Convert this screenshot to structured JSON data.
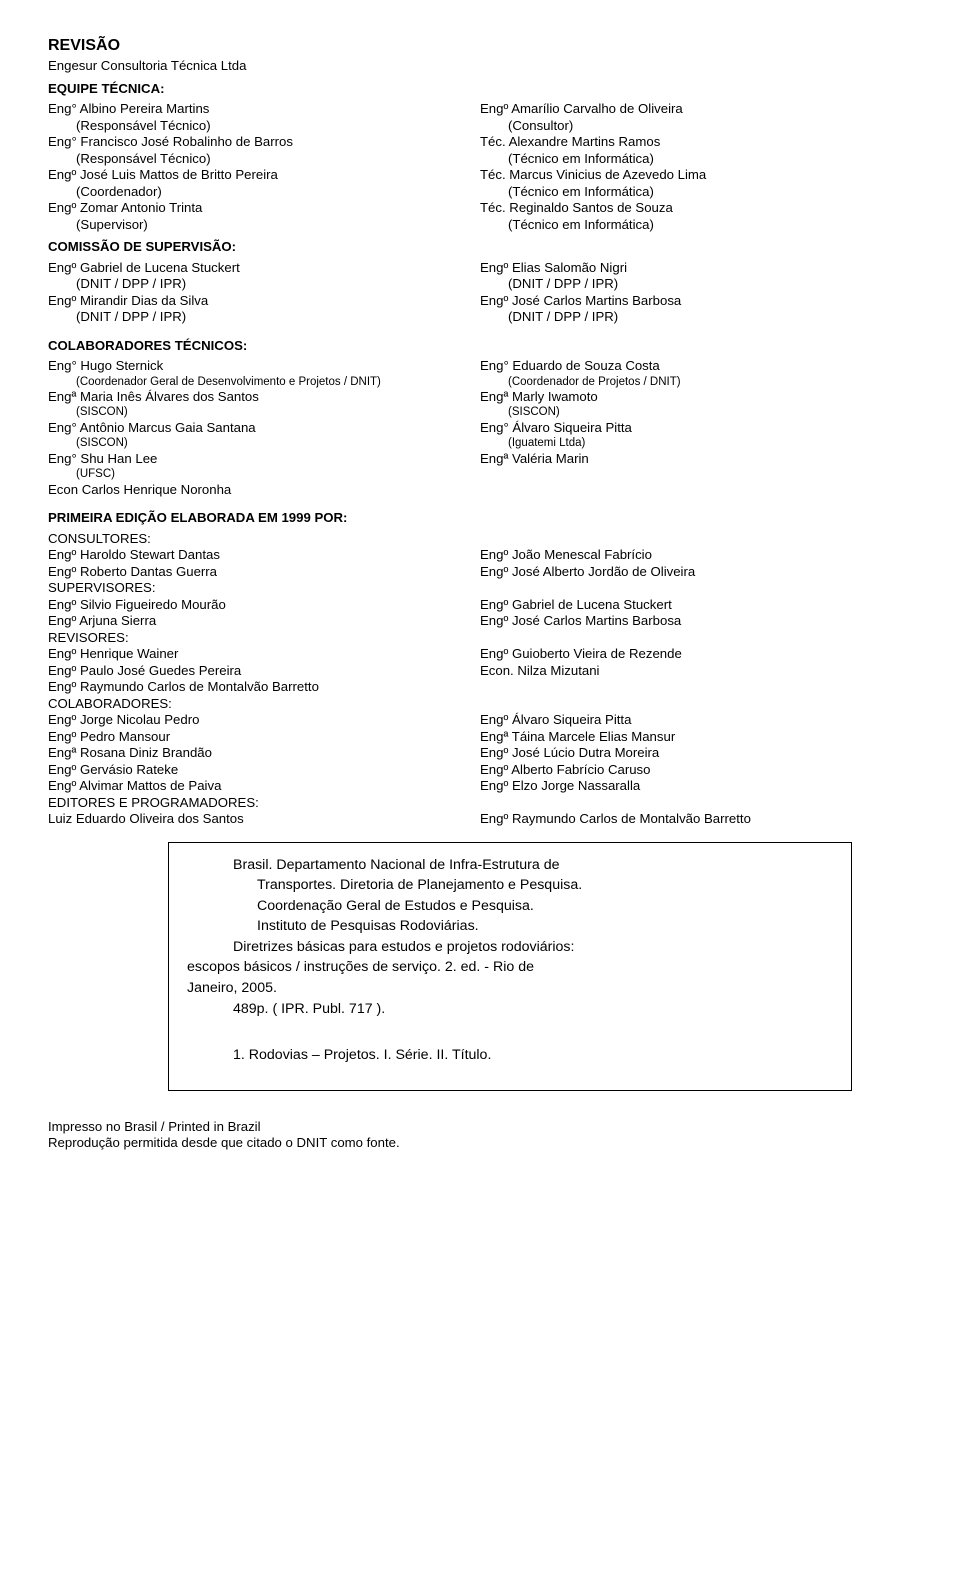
{
  "header": {
    "title": "REVISÃO",
    "company": "Engesur Consultoria Técnica Ltda"
  },
  "tech_team": {
    "heading": "EQUIPE TÉCNICA:",
    "left": [
      {
        "name": "Eng° Albino Pereira Martins",
        "role": "(Responsável Técnico)"
      },
      {
        "name": "Eng° Francisco José Robalinho de Barros",
        "role": "(Responsável Técnico)"
      },
      {
        "name": "Engº José Luis Mattos de Britto Pereira",
        "role": "(Coordenador)"
      },
      {
        "name": "Engº Zomar Antonio Trinta",
        "role": "(Supervisor)"
      }
    ],
    "right": [
      {
        "name": "Engº Amarílio Carvalho de Oliveira",
        "role": "(Consultor)"
      },
      {
        "name": "Téc. Alexandre Martins Ramos",
        "role": "(Técnico em Informática)"
      },
      {
        "name": "Téc. Marcus Vinicius de Azevedo Lima",
        "role": "(Técnico em Informática)"
      },
      {
        "name": "Téc. Reginaldo Santos de Souza",
        "role": "(Técnico em Informática)"
      }
    ]
  },
  "commission": {
    "heading": "COMISSÃO DE SUPERVISÃO:",
    "left": [
      {
        "name": "Engº Gabriel de Lucena Stuckert",
        "role": "(DNIT / DPP / IPR)"
      },
      {
        "name": "Engº Mirandir Dias da Silva",
        "role": "(DNIT / DPP / IPR)"
      }
    ],
    "right": [
      {
        "name": "Engº Elias Salomão Nigri",
        "role": "(DNIT / DPP / IPR)"
      },
      {
        "name": "Engº José Carlos Martins Barbosa",
        "role": "(DNIT / DPP / IPR)"
      }
    ]
  },
  "collab": {
    "heading": "COLABORADORES TÉCNICOS:",
    "left": [
      {
        "name": "Eng° Hugo Sternick",
        "role": "(Coordenador Geral de Desenvolvimento e Projetos / DNIT)",
        "small": true
      },
      {
        "name": "Engª Maria Inês Álvares dos Santos",
        "role": "(SISCON)",
        "small": true
      },
      {
        "name": "Eng° Antônio Marcus Gaia Santana",
        "role": "(SISCON)",
        "small": true
      },
      {
        "name": "Eng° Shu Han Lee",
        "role": "(UFSC)",
        "small": true
      },
      {
        "name": "Econ Carlos Henrique Noronha",
        "role": ""
      }
    ],
    "right": [
      {
        "name": "Eng° Eduardo de Souza Costa",
        "role": "(Coordenador de Projetos / DNIT)",
        "small": true
      },
      {
        "name": "Engª Marly Iwamoto",
        "role": "(SISCON)",
        "small": true
      },
      {
        "name": "Eng° Álvaro Siqueira Pitta",
        "role": "(Iguatemi Ltda)",
        "small": true
      },
      {
        "name": "Engª Valéria Marin",
        "role": ""
      }
    ]
  },
  "first_edition": {
    "heading": "PRIMEIRA EDIÇÃO ELABORADA EM 1999 POR:",
    "sections": [
      {
        "heading": "CONSULTORES:",
        "pairs": [
          [
            "Engº Haroldo Stewart Dantas",
            "Engº João Menescal Fabrício"
          ],
          [
            "Engº Roberto Dantas Guerra",
            "Engº José Alberto Jordão de Oliveira"
          ]
        ]
      },
      {
        "heading": "SUPERVISORES:",
        "pairs": [
          [
            "Engº Silvio Figueiredo Mourão",
            "Engº Gabriel de Lucena Stuckert"
          ],
          [
            "Engº Arjuna Sierra",
            "Engº José Carlos Martins Barbosa"
          ]
        ]
      },
      {
        "heading": "REVISORES:",
        "pairs": [
          [
            "Engº Henrique Wainer",
            "Engº Guioberto Vieira de Rezende"
          ],
          [
            "Engº Paulo José Guedes Pereira",
            "Econ. Nilza Mizutani"
          ],
          [
            "Engº Raymundo Carlos de Montalvão Barretto",
            ""
          ]
        ]
      },
      {
        "heading": "COLABORADORES:",
        "pairs": [
          [
            "Engº Jorge Nicolau Pedro",
            "Engº Álvaro Siqueira Pitta"
          ],
          [
            "Engº Pedro Mansour",
            "Engª Táina Marcele Elias Mansur"
          ],
          [
            "Engª Rosana Diniz Brandão",
            "Engº José Lúcio Dutra Moreira"
          ],
          [
            "Engº Gervásio Rateke",
            "Engº Alberto Fabrício Caruso"
          ],
          [
            "Engº Alvimar Mattos de Paiva",
            "Engº Elzo Jorge Nassaralla"
          ]
        ]
      },
      {
        "heading": "EDITORES E PROGRAMADORES:",
        "pairs": [
          [
            "Luiz Eduardo Oliveira dos Santos",
            "Engº Raymundo Carlos de Montalvão Barretto"
          ]
        ]
      }
    ]
  },
  "citation": {
    "lines": [
      "Brasil. Departamento Nacional de Infra-Estrutura de",
      "Transportes. Diretoria de Planejamento e Pesquisa.",
      "Coordenação Geral de Estudos e Pesquisa.",
      "Instituto de Pesquisas Rodoviárias.",
      "Diretrizes básicas para estudos e projetos rodoviários:",
      "escopos básicos / instruções de serviço.  2. ed.   -   Rio de",
      "Janeiro, 2005.",
      "489p. ( IPR.  Publ.  717 )."
    ],
    "subject": "1. Rodovias – Projetos. I. Série. II. Título."
  },
  "footer": {
    "line1": "Impresso no Brasil / Printed in Brazil",
    "line2": "Reprodução permitida desde que citado o DNIT como fonte."
  }
}
